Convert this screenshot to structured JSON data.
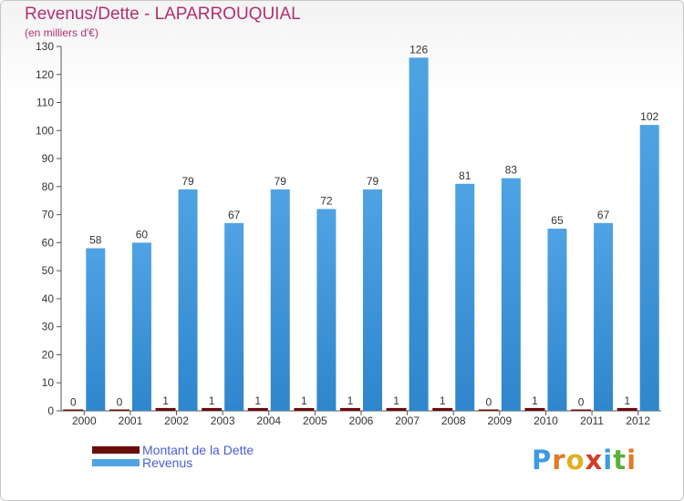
{
  "title": "Revenus/Dette - LAPARROUQUIAL",
  "subtitle": "(en milliers d'€)",
  "legend": {
    "debt_label": "Montant de la Dette",
    "revenue_label": "Revenus"
  },
  "logo": {
    "letters": [
      "P",
      "r",
      "o",
      "x",
      "i",
      "t",
      "i"
    ],
    "colors": [
      "#3c9be0",
      "#e07b25",
      "#e0b020",
      "#d63a2a",
      "#3c9be0",
      "#58b03a",
      "#e07b25"
    ]
  },
  "colors": {
    "revenue": "#4fa3e3",
    "revenue_dark": "#2f86cc",
    "debt": "#6b0c0c",
    "axis": "#555555",
    "text": "#333333"
  },
  "chart_data": {
    "type": "bar",
    "categories": [
      "2000",
      "2001",
      "2002",
      "2003",
      "2004",
      "2005",
      "2006",
      "2007",
      "2008",
      "2009",
      "2010",
      "2011",
      "2012"
    ],
    "series": [
      {
        "name": "Montant de la Dette",
        "values": [
          0,
          0,
          1,
          1,
          1,
          1,
          1,
          1,
          1,
          0,
          1,
          0,
          1
        ]
      },
      {
        "name": "Revenus",
        "values": [
          58,
          60,
          79,
          67,
          79,
          72,
          79,
          126,
          81,
          83,
          65,
          67,
          102
        ]
      }
    ],
    "ylim": [
      0,
      130
    ],
    "yticks": [
      0,
      10,
      20,
      30,
      40,
      50,
      60,
      70,
      80,
      90,
      100,
      110,
      120,
      130
    ],
    "xlabel": "",
    "ylabel": "",
    "legend_position": "bottom-left"
  }
}
